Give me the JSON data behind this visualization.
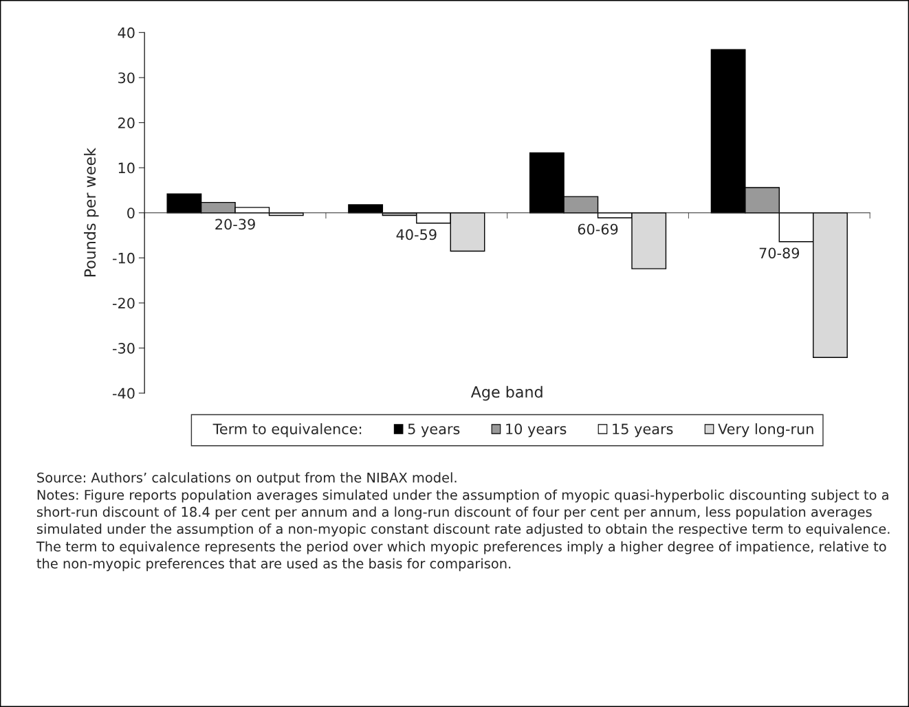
{
  "chart_data": {
    "type": "bar",
    "xlabel": "Age band",
    "ylabel": "Pounds per week",
    "categories": [
      "20-39",
      "40-59",
      "60-69",
      "70-89"
    ],
    "series": [
      {
        "name": "5 years",
        "color": "#000000",
        "values": [
          4.2,
          1.8,
          13.3,
          36.2
        ]
      },
      {
        "name": "10 years",
        "color": "#999999",
        "values": [
          2.3,
          -0.6,
          3.6,
          5.6
        ]
      },
      {
        "name": "15 years",
        "color": "#ffffff",
        "values": [
          1.2,
          -2.3,
          -1.1,
          -6.4
        ]
      },
      {
        "name": "Very long-run",
        "color": "#d9d9d9",
        "values": [
          -0.6,
          -8.5,
          -12.4,
          -32.1
        ]
      }
    ],
    "ylim": [
      -40,
      40
    ],
    "yticks": [
      -40,
      -30,
      -20,
      -10,
      0,
      10,
      20,
      30,
      40
    ],
    "legend": "bottom",
    "legend_title": "Term to equivalence:",
    "annotations": [
      "Source: Authors’ calculations on output from the NIBAX model.",
      "Notes: Figure reports population averages simulated under the assumption of myopic quasi-hyperbolic discounting subject to a short-run discount of 18.4 per cent per annum and a long-run discount of four per cent per annum, less population averages simulated under the assumption of a non-myopic constant discount rate adjusted to obtain the respective term to equivalence.",
      "The term to equivalence represents the period over which myopic preferences imply a higher degree of impatience, relative to the non-myopic preferences that are used as the basis for comparison."
    ]
  }
}
